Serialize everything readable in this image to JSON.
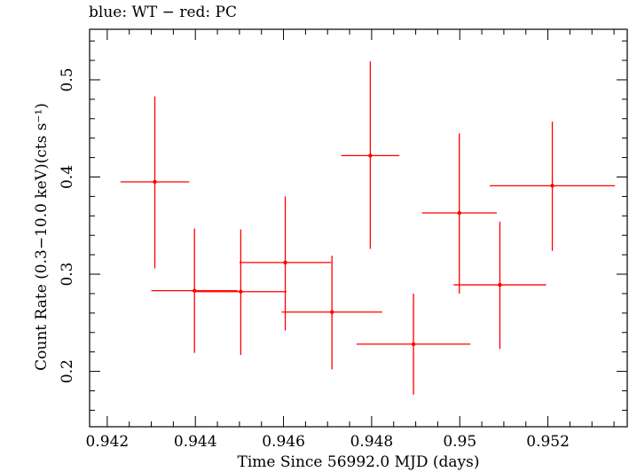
{
  "chart_data": {
    "type": "scatter",
    "title": "blue: WT − red: PC",
    "xlabel": "Time Since 56992.0 MJD (days)",
    "ylabel": "Count Rate (0.3−10.0 keV)(cts s⁻¹)",
    "xlim": [
      0.9416,
      0.9538
    ],
    "ylim": [
      0.143,
      0.552
    ],
    "x_ticks": [
      0.942,
      0.944,
      0.946,
      0.948,
      0.95,
      0.952
    ],
    "x_tick_labels": [
      "0.942",
      "0.944",
      "0.946",
      "0.948",
      "0.95",
      "0.952"
    ],
    "y_ticks": [
      0.2,
      0.3,
      0.4,
      0.5
    ],
    "y_tick_labels": [
      "0.2",
      "0.3",
      "0.4",
      "0.5"
    ],
    "grid": false,
    "series": [
      {
        "color": "#ff0000",
        "points": [
          {
            "x": 0.94308,
            "y": 0.395,
            "xerr": 0.00078,
            "yerr_lo": 0.089,
            "yerr_hi": 0.088
          },
          {
            "x": 0.94398,
            "y": 0.283,
            "xerr": 0.00098,
            "yerr_lo": 0.064,
            "yerr_hi": 0.064
          },
          {
            "x": 0.94503,
            "y": 0.282,
            "xerr": 0.00104,
            "yerr_lo": 0.065,
            "yerr_hi": 0.064
          },
          {
            "x": 0.94604,
            "y": 0.312,
            "xerr": 0.00104,
            "yerr_lo": 0.07,
            "yerr_hi": 0.068
          },
          {
            "x": 0.9471,
            "y": 0.261,
            "xerr": 0.00114,
            "yerr_lo": 0.059,
            "yerr_hi": 0.058
          },
          {
            "x": 0.94797,
            "y": 0.422,
            "xerr": 0.00066,
            "yerr_lo": 0.096,
            "yerr_hi": 0.097
          },
          {
            "x": 0.94895,
            "y": 0.228,
            "xerr": 0.00129,
            "yerr_lo": 0.052,
            "yerr_hi": 0.052
          },
          {
            "x": 0.94999,
            "y": 0.363,
            "xerr": 0.00085,
            "yerr_lo": 0.083,
            "yerr_hi": 0.082
          },
          {
            "x": 0.95091,
            "y": 0.289,
            "xerr": 0.00105,
            "yerr_lo": 0.066,
            "yerr_hi": 0.065
          },
          {
            "x": 0.9521,
            "y": 0.391,
            "xerr": 0.00142,
            "yerr_lo": 0.067,
            "yerr_hi": 0.066
          }
        ]
      }
    ]
  }
}
